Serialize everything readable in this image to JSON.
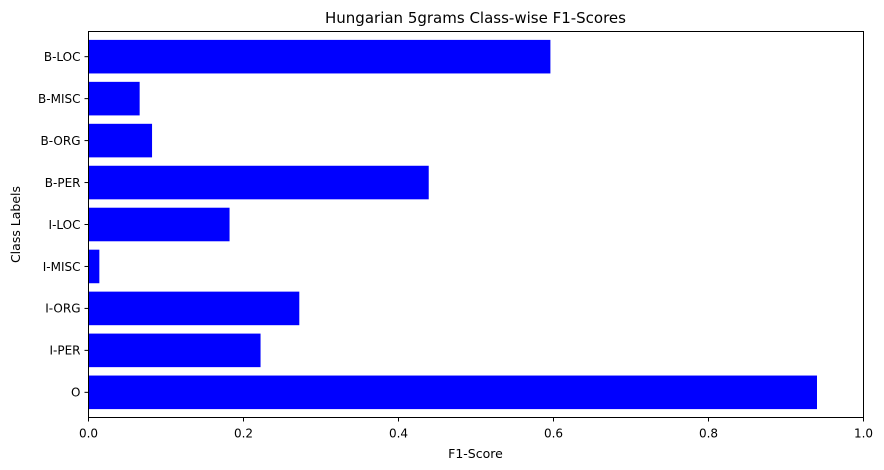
{
  "chart_data": {
    "type": "bar",
    "orientation": "horizontal",
    "title": "Hungarian 5grams Class-wise F1-Scores",
    "xlabel": "F1-Score",
    "ylabel": "Class Labels",
    "categories": [
      "B-LOC",
      "B-MISC",
      "B-ORG",
      "B-PER",
      "I-LOC",
      "I-MISC",
      "I-ORG",
      "I-PER",
      "O"
    ],
    "values": [
      0.596,
      0.066,
      0.082,
      0.439,
      0.182,
      0.014,
      0.272,
      0.222,
      0.94
    ],
    "xlim": [
      0,
      1.0
    ],
    "xticks": [
      "0.0",
      "0.2",
      "0.4",
      "0.6",
      "0.8",
      "1.0"
    ],
    "bar_color": "#0000ff",
    "grid": false,
    "legend": "none"
  }
}
